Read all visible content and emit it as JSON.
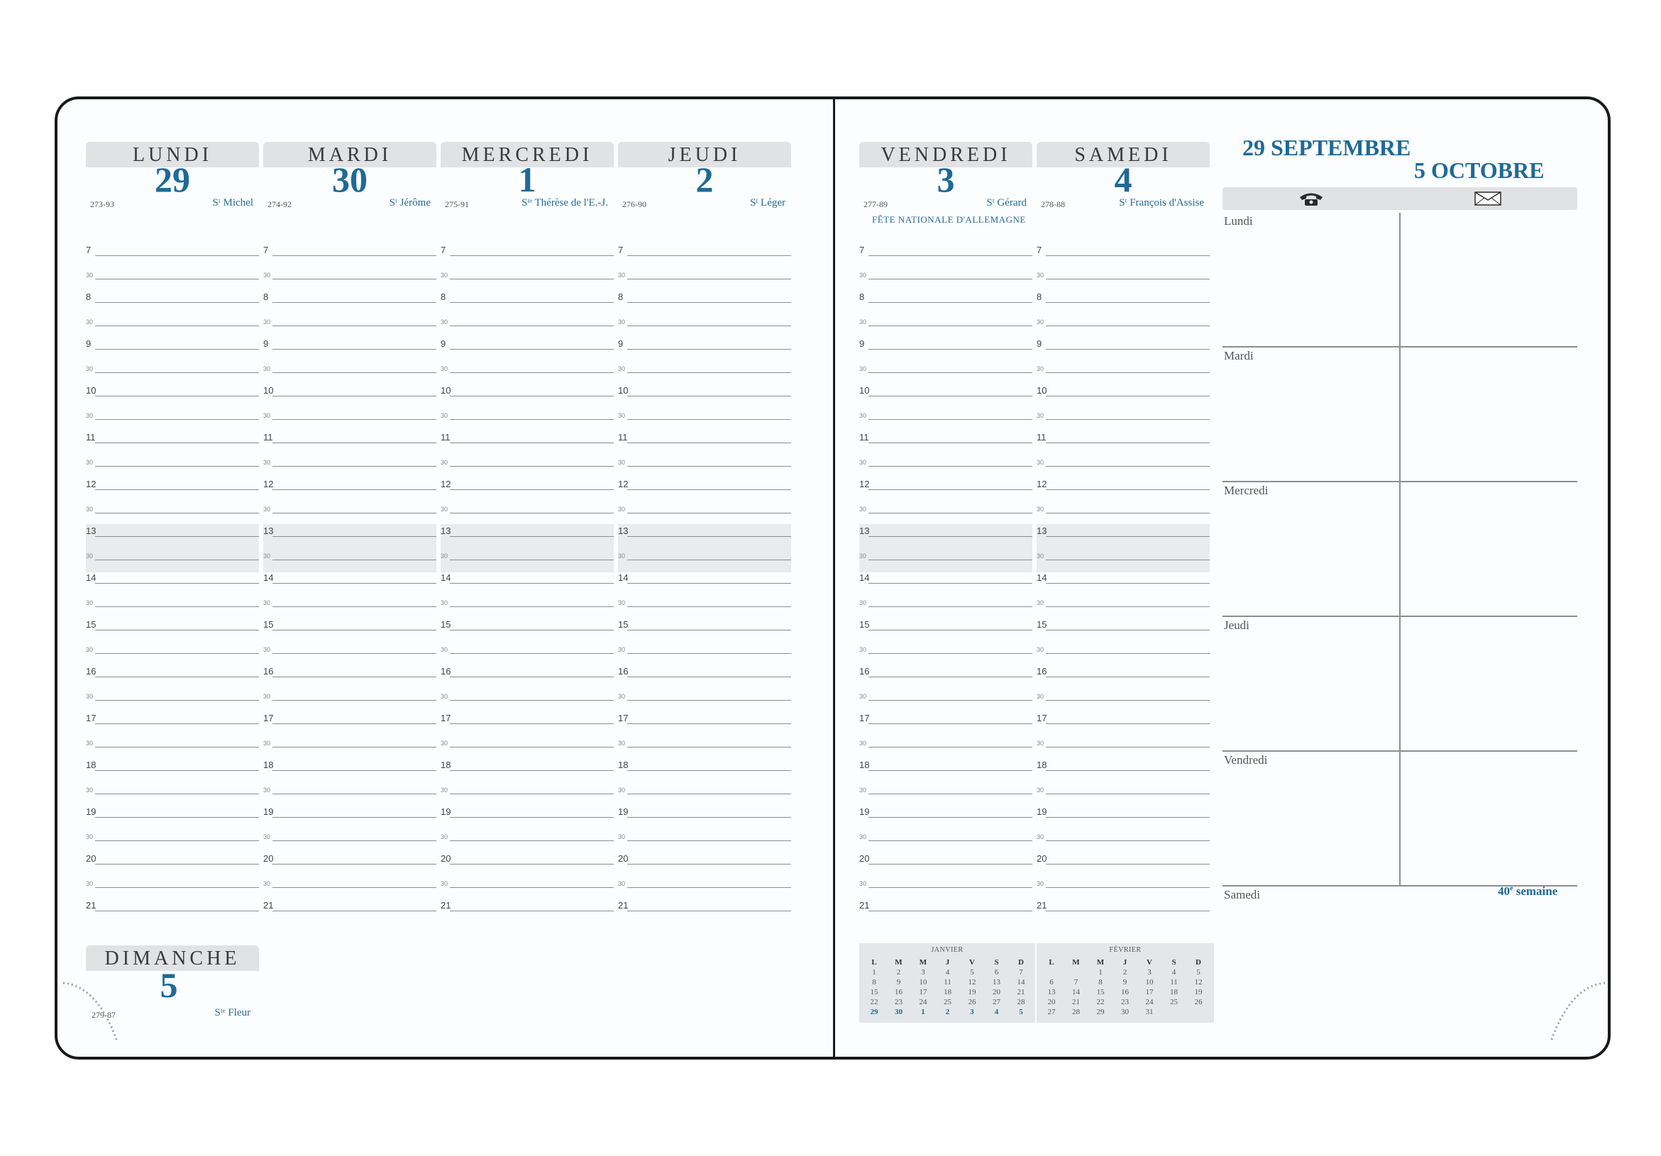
{
  "days": [
    {
      "name": "LUNDI",
      "number": "29",
      "code": "273-93",
      "saint": "Sᵗ Michel"
    },
    {
      "name": "MARDI",
      "number": "30",
      "code": "274-92",
      "saint": "Sᵗ Jérôme"
    },
    {
      "name": "MERCREDI",
      "number": "1",
      "code": "275-91",
      "saint": "Sᵗᵉ Thérèse de l'E.-J."
    },
    {
      "name": "JEUDI",
      "number": "2",
      "code": "276-90",
      "saint": "Sᵗ Léger"
    },
    {
      "name": "VENDREDI",
      "number": "3",
      "code": "277-89",
      "saint": "Sᵗ Gérard",
      "fete": "FÊTE NATIONALE D'ALLEMAGNE"
    },
    {
      "name": "SAMEDI",
      "number": "4",
      "code": "278-88",
      "saint": "Sᵗ François d'Assise"
    }
  ],
  "sunday": {
    "name": "DIMANCHE",
    "number": "5",
    "code": "279-87",
    "saint": "Sᵗᵉ Fleur"
  },
  "hours": [
    "7",
    "8",
    "9",
    "10",
    "11",
    "12",
    "13",
    "14",
    "15",
    "16",
    "17",
    "18",
    "19",
    "20",
    "21"
  ],
  "half_label": "30",
  "week": {
    "start": "29 SEPTEMBRE",
    "end": "5 OCTOBRE",
    "phone_icon": "phone-icon",
    "mail_icon": "envelope-icon",
    "rows": [
      "Lundi",
      "Mardi",
      "Mercredi",
      "Jeudi",
      "Vendredi",
      "Samedi"
    ],
    "week_number": "40",
    "week_suffix": "e",
    "week_word": "semaine"
  },
  "mini_calendars": [
    {
      "title": "JANVIER",
      "headers": [
        "L",
        "M",
        "M",
        "J",
        "V",
        "S",
        "D"
      ],
      "rows": [
        [
          "1",
          "2",
          "3",
          "4",
          "5",
          "6",
          "7"
        ],
        [
          "8",
          "9",
          "10",
          "11",
          "12",
          "13",
          "14"
        ],
        [
          "15",
          "16",
          "17",
          "18",
          "19",
          "20",
          "21"
        ],
        [
          "22",
          "23",
          "24",
          "25",
          "26",
          "27",
          "28"
        ],
        [
          "29",
          "30",
          "1",
          "2",
          "3",
          "4",
          "5"
        ]
      ]
    },
    {
      "title": "FÉVRIER",
      "headers": [
        "L",
        "M",
        "M",
        "J",
        "V",
        "S",
        "D"
      ],
      "rows": [
        [
          "",
          "",
          "1",
          "2",
          "3",
          "4",
          "5"
        ],
        [
          "6",
          "7",
          "8",
          "9",
          "10",
          "11",
          "12"
        ],
        [
          "13",
          "14",
          "15",
          "16",
          "17",
          "18",
          "19"
        ],
        [
          "20",
          "21",
          "22",
          "23",
          "24",
          "25",
          "26"
        ],
        [
          "27",
          "28",
          "29",
          "30",
          "31",
          "",
          ""
        ]
      ]
    }
  ],
  "colors": {
    "accent": "#1e6a96",
    "header_bg": "#e1e2e3",
    "shade": "#e9ebec",
    "border": "#1a1a1a"
  }
}
